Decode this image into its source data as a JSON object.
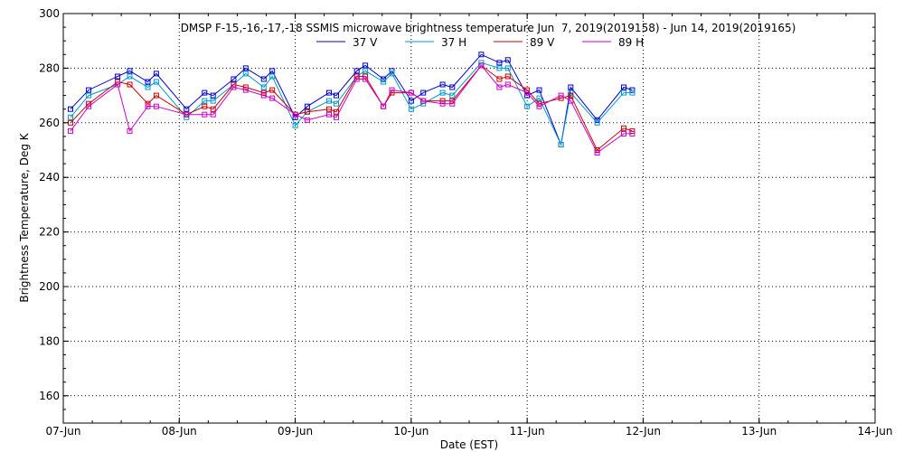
{
  "chart_data": {
    "type": "line",
    "title": "DMSP F-15,-16,-17,-18 SSMIS microwave brightness temperature Jun  7, 2019(2019158) - Jun 14, 2019(2019165)",
    "xlabel": "Date (EST)",
    "ylabel": "Brightness Temperature, Deg K",
    "xlim": [
      "2019-06-07 00:00",
      "2019-06-14 00:00"
    ],
    "ylim": [
      150,
      300
    ],
    "yticks": [
      160,
      180,
      200,
      220,
      240,
      260,
      280,
      300
    ],
    "xticks": [
      {
        "t": "2019-06-07 00:00",
        "label": "07-Jun"
      },
      {
        "t": "2019-06-08 00:00",
        "label": "08-Jun"
      },
      {
        "t": "2019-06-09 00:00",
        "label": "09-Jun"
      },
      {
        "t": "2019-06-10 00:00",
        "label": "10-Jun"
      },
      {
        "t": "2019-06-11 00:00",
        "label": "11-Jun"
      },
      {
        "t": "2019-06-12 00:00",
        "label": "12-Jun"
      },
      {
        "t": "2019-06-13 00:00",
        "label": "13-Jun"
      },
      {
        "t": "2019-06-14 00:00",
        "label": "14-Jun"
      }
    ],
    "grid": true,
    "legend": "top-center",
    "x": [
      "2019-06-07 01:30",
      "2019-06-07 05:15",
      "2019-06-07 11:15",
      "2019-06-07 13:45",
      "2019-06-07 17:30",
      "2019-06-07 19:15",
      "2019-06-08 01:30",
      "2019-06-08 05:15",
      "2019-06-08 07:00",
      "2019-06-08 11:15",
      "2019-06-08 13:45",
      "2019-06-08 17:30",
      "2019-06-08 19:15",
      "2019-06-09 00:00",
      "2019-06-09 02:30",
      "2019-06-09 07:00",
      "2019-06-09 08:30",
      "2019-06-09 12:45",
      "2019-06-09 14:30",
      "2019-06-09 18:15",
      "2019-06-09 20:00",
      "2019-06-10 00:00",
      "2019-06-10 02:30",
      "2019-06-10 06:30",
      "2019-06-10 08:30",
      "2019-06-10 14:30",
      "2019-06-10 18:15",
      "2019-06-10 20:00",
      "2019-06-11 00:00",
      "2019-06-11 02:30",
      "2019-06-11 07:00",
      "2019-06-11 09:00",
      "2019-06-11 14:30",
      "2019-06-11 20:00",
      "2019-06-11 21:45"
    ],
    "series": [
      {
        "name": "37 V",
        "color": "#0000cc",
        "values": [
          265,
          272,
          277,
          279,
          275,
          278,
          265,
          271,
          270,
          276,
          280,
          276,
          279,
          262,
          266,
          271,
          270,
          279,
          281,
          276,
          279,
          268,
          271,
          274,
          273,
          285,
          282,
          283,
          270,
          272,
          252,
          273,
          261,
          273,
          272
        ]
      },
      {
        "name": "37 H",
        "color": "#0099cc",
        "values": [
          262,
          270,
          274,
          277,
          273,
          275,
          262,
          268,
          268,
          274,
          278,
          273,
          277,
          259,
          264,
          268,
          267,
          277,
          279,
          275,
          278,
          265,
          267,
          271,
          270,
          282,
          280,
          280,
          266,
          269,
          252,
          271,
          260,
          271,
          271
        ]
      },
      {
        "name": "89 V",
        "color": "#cc0000",
        "values": [
          260,
          267,
          275,
          274,
          267,
          270,
          263,
          266,
          265,
          274,
          273,
          271,
          272,
          263,
          264,
          265,
          264,
          277,
          277,
          266,
          271,
          271,
          268,
          268,
          268,
          281,
          276,
          277,
          272,
          267,
          269,
          270,
          250,
          258,
          257
        ]
      },
      {
        "name": "89 H",
        "color": "#cc00cc",
        "values": [
          257,
          266,
          274,
          257,
          266,
          266,
          263,
          263,
          263,
          273,
          272,
          270,
          269,
          263,
          261,
          263,
          262,
          276,
          276,
          266,
          272,
          271,
          268,
          267,
          267,
          281,
          273,
          274,
          271,
          266,
          270,
          268,
          249,
          256,
          256
        ]
      }
    ]
  }
}
